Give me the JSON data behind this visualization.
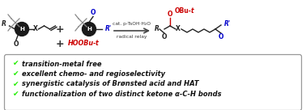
{
  "background_color": "#ffffff",
  "box_background": "#ffffff",
  "box_edge_color": "#999999",
  "bullet_color": "#22ee00",
  "bullet_char": "✔",
  "bullet_items": [
    "transition-metal free",
    "excellent chemo- and regioselectivity",
    "synergistic catalysis of Brønsted acid and HAT",
    "functionalization of two distinct ketone α-C-H bonds"
  ],
  "text_color": "#111111",
  "arrow_color": "#444444",
  "cat_text": "cat. p-TsOH·H₂O",
  "radical_text": "radical relay",
  "red_color": "#cc0000",
  "blue_color": "#0000cc",
  "dark_color": "#222222",
  "gray_color": "#666666"
}
